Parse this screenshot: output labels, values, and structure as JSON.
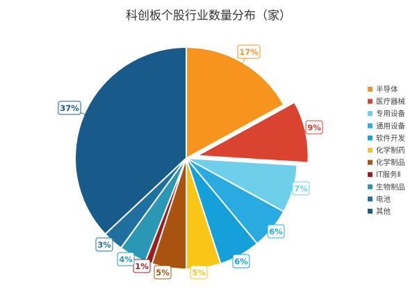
{
  "chart_data": {
    "type": "pie",
    "title": "科创板个股行业数量分布（家）",
    "legend_position": "right",
    "categories": [
      "半导体",
      "医疗器械",
      "专用设备",
      "通用设备",
      "软件开发",
      "化学制药",
      "化学制品",
      "IT服务Ⅱ",
      "生物制品",
      "电池",
      "其他"
    ],
    "values": [
      17,
      9,
      7,
      6,
      6,
      5,
      5,
      1,
      4,
      3,
      37
    ],
    "labels": [
      "17%",
      "9%",
      "7%",
      "6%",
      "6%",
      "5%",
      "5%",
      "1%",
      "4%",
      "3%",
      "37%"
    ],
    "colors": [
      "#F7941D",
      "#D9432F",
      "#6DCFEA",
      "#29AAE1",
      "#16A0D9",
      "#F9C617",
      "#A8530F",
      "#9E1B1F",
      "#2A97B4",
      "#1F6FA0",
      "#185A8A"
    ],
    "exploded": [
      "医疗器械"
    ]
  }
}
